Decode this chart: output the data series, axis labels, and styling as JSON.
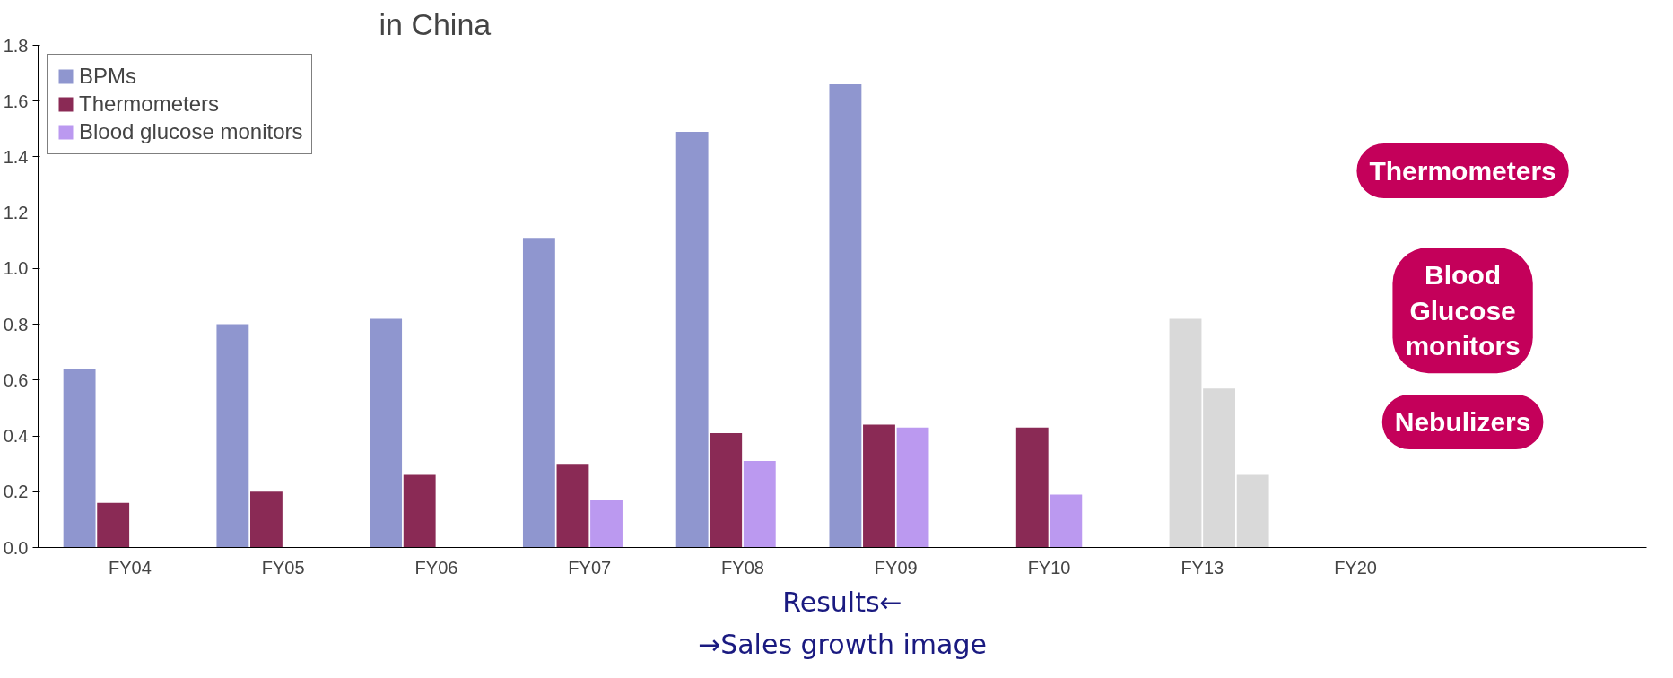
{
  "chart_data": {
    "type": "bar",
    "title": "in China",
    "categories": [
      "FY04",
      "FY05",
      "FY06",
      "FY07",
      "FY08",
      "FY09",
      "FY10",
      "FY13",
      "FY20"
    ],
    "series": [
      {
        "name": "BPMs",
        "color": "#8f96cf",
        "values": [
          0.64,
          0.8,
          0.82,
          1.11,
          1.49,
          1.66,
          null,
          null,
          null
        ]
      },
      {
        "name": "Thermometers",
        "color": "#8a2a55",
        "colors": [
          "#8a2a55",
          "#8a2a55",
          "#8a2a55",
          "#8a2a55",
          "#8a2a55",
          "#8a2a55",
          "#8a2a55",
          "#d9d9d9",
          "#d9d9d9"
        ],
        "values": [
          0.16,
          0.2,
          0.26,
          0.3,
          0.41,
          0.44,
          0.43,
          0.82,
          null
        ]
      },
      {
        "name": "Blood glucose monitors",
        "color": "#bb99f0",
        "colors": [
          "#bb99f0",
          "#bb99f0",
          "#bb99f0",
          "#bb99f0",
          "#bb99f0",
          "#bb99f0",
          "#bb99f0",
          "#d9d9d9",
          "#d9d9d9"
        ],
        "values": [
          null,
          null,
          null,
          0.17,
          0.31,
          0.43,
          0.19,
          0.57,
          null
        ]
      },
      {
        "color": "#d9d9d9",
        "values": [
          null,
          null,
          null,
          null,
          null,
          null,
          null,
          0.26,
          null
        ]
      }
    ],
    "ylim": [
      0,
      1.8
    ],
    "yticks": [
      {
        "value": 0,
        "label": "0.0"
      },
      0.2,
      0.4,
      0.6,
      0.8,
      {
        "value": 1,
        "label": "1.0"
      },
      1.2,
      1.4,
      1.6,
      1.8
    ],
    "grid": false,
    "legend": "top left",
    "annotations": [
      "Thermometers",
      "Blood Glucose monitors",
      "Nebulizers",
      "Results←",
      "→Sales growth image"
    ]
  }
}
